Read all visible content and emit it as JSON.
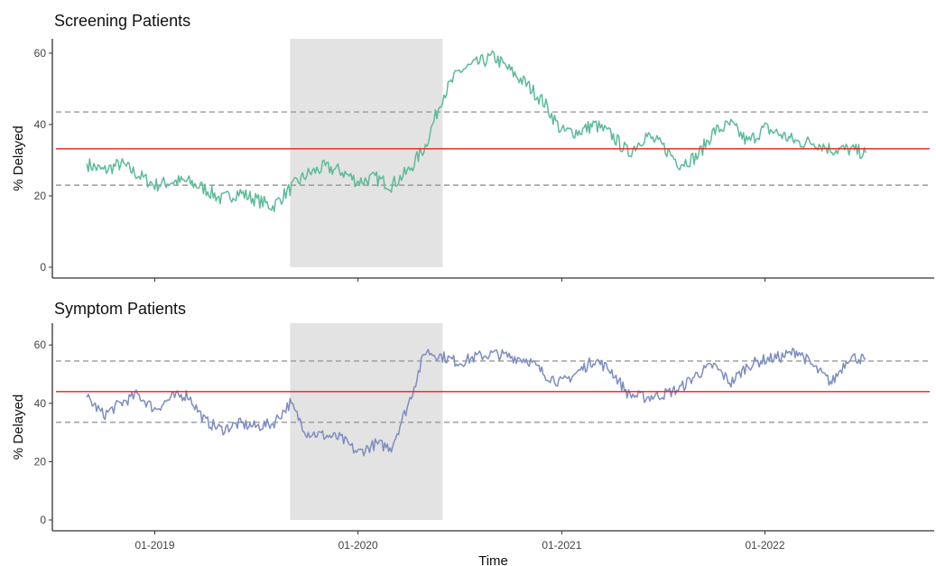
{
  "chart_data": {
    "type": "line",
    "xlabel": "Time",
    "x_tick_labels": [
      "01-2019",
      "01-2020",
      "01-2021",
      "01-2022"
    ],
    "shaded_period": {
      "start": "2019-09",
      "end": "2020-06"
    },
    "colors": {
      "shade": "#e3e3e3",
      "mean_line": "#ee1c1c",
      "band_line": "#9a9a9a",
      "axis": "#333333"
    },
    "panels": [
      {
        "title": "Screening Patients",
        "ylabel": "% Delayed",
        "ylim": [
          0,
          62
        ],
        "y_ticks": [
          0,
          20,
          40,
          60
        ],
        "mean": 33.2,
        "band": [
          23,
          43.5
        ],
        "line_color": "#5dbb97",
        "series": {
          "x": [
            "2018-09-01",
            "2018-10-01",
            "2018-11-01",
            "2018-12-01",
            "2019-01-01",
            "2019-02-01",
            "2019-03-01",
            "2019-04-01",
            "2019-05-01",
            "2019-06-01",
            "2019-07-01",
            "2019-08-01",
            "2019-09-01",
            "2019-10-01",
            "2019-11-01",
            "2019-12-01",
            "2020-01-01",
            "2020-02-01",
            "2020-03-01",
            "2020-04-01",
            "2020-05-01",
            "2020-06-01",
            "2020-07-01",
            "2020-08-01",
            "2020-09-01",
            "2020-10-01",
            "2020-11-01",
            "2020-12-01",
            "2021-01-01",
            "2021-02-01",
            "2021-03-01",
            "2021-04-01",
            "2021-05-01",
            "2021-06-01",
            "2021-07-01",
            "2021-08-01",
            "2021-09-01",
            "2021-10-01",
            "2021-11-01",
            "2021-12-01",
            "2022-01-01",
            "2022-02-01",
            "2022-03-01",
            "2022-04-01",
            "2022-05-01",
            "2022-06-01",
            "2022-07-01"
          ],
          "y": [
            29,
            27,
            29,
            26,
            23,
            24,
            24,
            22,
            19,
            21,
            19,
            17,
            22,
            26,
            28,
            27,
            24,
            25,
            23,
            27,
            34,
            48,
            55,
            57,
            59,
            55,
            51,
            46,
            38,
            38,
            40,
            37,
            32,
            37,
            34,
            29,
            31,
            38,
            40,
            35,
            39,
            37,
            35,
            35,
            33,
            33,
            32
          ]
        }
      },
      {
        "title": "Symptom Patients",
        "ylabel": "% Delayed",
        "ylim": [
          0,
          65
        ],
        "y_ticks": [
          0,
          20,
          40,
          60
        ],
        "mean": 44,
        "band": [
          33.5,
          54.5
        ],
        "line_color": "#7d8dc0",
        "series": {
          "x": [
            "2018-09-01",
            "2018-10-01",
            "2018-11-01",
            "2018-12-01",
            "2019-01-01",
            "2019-02-01",
            "2019-03-01",
            "2019-04-01",
            "2019-05-01",
            "2019-06-01",
            "2019-07-01",
            "2019-08-01",
            "2019-09-01",
            "2019-10-01",
            "2019-11-01",
            "2019-12-01",
            "2020-01-01",
            "2020-02-01",
            "2020-03-01",
            "2020-04-01",
            "2020-05-01",
            "2020-06-01",
            "2020-07-01",
            "2020-08-01",
            "2020-09-01",
            "2020-10-01",
            "2020-11-01",
            "2020-12-01",
            "2021-01-01",
            "2021-02-01",
            "2021-03-01",
            "2021-04-01",
            "2021-05-01",
            "2021-06-01",
            "2021-07-01",
            "2021-08-01",
            "2021-09-01",
            "2021-10-01",
            "2021-11-01",
            "2021-12-01",
            "2022-01-01",
            "2022-02-01",
            "2022-03-01",
            "2022-04-01",
            "2022-05-01",
            "2022-06-01",
            "2022-07-01"
          ],
          "y": [
            42,
            36,
            40,
            43,
            38,
            42,
            43,
            34,
            31,
            33,
            32,
            33,
            40,
            30,
            29,
            28,
            23,
            26,
            25,
            40,
            58,
            56,
            54,
            56,
            57,
            56,
            55,
            50,
            47,
            51,
            55,
            51,
            43,
            42,
            43,
            45,
            50,
            53,
            47,
            53,
            55,
            56,
            58,
            52,
            47,
            56,
            55
          ]
        }
      }
    ]
  }
}
